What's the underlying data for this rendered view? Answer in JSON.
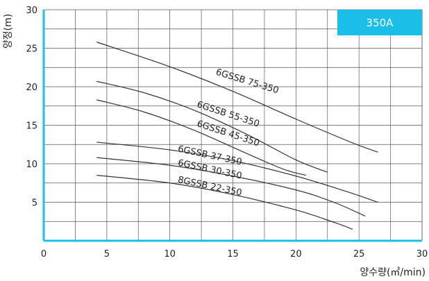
{
  "badge": {
    "label": "350A",
    "color": "#1ABFE8"
  },
  "colors": {
    "axis": "#1ABFE8",
    "grid": "#555555",
    "curve": "#333333"
  },
  "chart_data": {
    "type": "line",
    "title": "",
    "xlabel": "양수량(㎥/min)",
    "ylabel": "양정(m)",
    "xlim": [
      0,
      30
    ],
    "ylim": [
      0,
      30
    ],
    "x_ticks": [
      0,
      5,
      10,
      15,
      20,
      25,
      30
    ],
    "y_ticks": [
      5,
      10,
      15,
      20,
      25,
      30
    ],
    "grid": true,
    "series": [
      {
        "name": "6GSSB 75-350",
        "x": [
          4.2,
          10,
          15,
          20,
          24.5,
          26.5
        ],
        "y": [
          25.8,
          22.6,
          19.4,
          15.8,
          12.7,
          11.5
        ]
      },
      {
        "name": "6GSSB 55-350",
        "x": [
          4.2,
          8,
          12,
          16,
          20,
          22.5
        ],
        "y": [
          20.7,
          19.2,
          16.9,
          13.9,
          10.5,
          8.9
        ]
      },
      {
        "name": "6GSSB 45-350",
        "x": [
          4.2,
          8,
          12,
          16,
          19,
          20.8
        ],
        "y": [
          18.3,
          16.7,
          14.3,
          11.4,
          9.3,
          8.5
        ]
      },
      {
        "name": "6GSSB 37-350",
        "x": [
          4.2,
          10,
          15,
          20,
          24,
          26.5
        ],
        "y": [
          12.8,
          11.8,
          10.4,
          8.4,
          6.4,
          5.0
        ]
      },
      {
        "name": "6GSSB 30-350",
        "x": [
          4.2,
          10,
          15,
          20,
          23,
          25.5
        ],
        "y": [
          10.8,
          9.8,
          8.4,
          6.6,
          5.0,
          3.2
        ]
      },
      {
        "name": "8GSSB 22-350",
        "x": [
          4.2,
          10,
          15,
          20,
          23,
          24.5
        ],
        "y": [
          8.5,
          7.5,
          6.0,
          4.0,
          2.4,
          1.5
        ]
      }
    ]
  }
}
